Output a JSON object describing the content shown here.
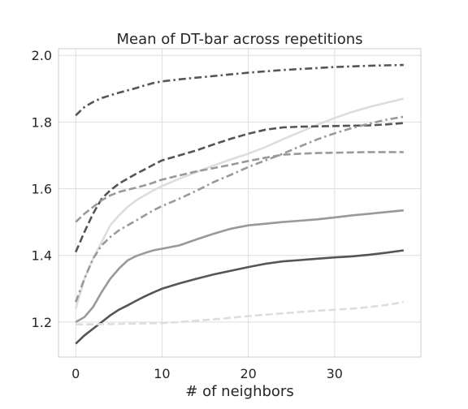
{
  "chart_data": {
    "type": "line",
    "title": "Mean of DT-bar across repetitions",
    "xlabel": "# of neighbors",
    "ylabel": "",
    "xlim": [
      -2,
      40
    ],
    "ylim": [
      1.095,
      2.02
    ],
    "xticks": [
      0,
      10,
      20,
      30
    ],
    "yticks": [
      1.2,
      1.4,
      1.6,
      1.8,
      2.0
    ],
    "ytick_labels": [
      "1.2",
      "1.4",
      "1.6",
      "1.8",
      "2.0"
    ],
    "grid": true,
    "series": [
      {
        "color": "#555555",
        "dash": "dashdot",
        "x": [
          0,
          1,
          2,
          3,
          4,
          5,
          6,
          7,
          8,
          9,
          10,
          12,
          14,
          16,
          18,
          20,
          22,
          24,
          26,
          28,
          30,
          32,
          34,
          36,
          38
        ],
        "y": [
          1.82,
          1.845,
          1.86,
          1.872,
          1.88,
          1.888,
          1.895,
          1.902,
          1.91,
          1.917,
          1.922,
          1.928,
          1.933,
          1.938,
          1.943,
          1.948,
          1.952,
          1.956,
          1.959,
          1.962,
          1.965,
          1.967,
          1.969,
          1.97,
          1.971
        ]
      },
      {
        "color": "#dddddd",
        "dash": "solid",
        "x": [
          0,
          1,
          2,
          3,
          4,
          5,
          6,
          7,
          8,
          9,
          10,
          12,
          14,
          16,
          18,
          20,
          22,
          24,
          26,
          28,
          30,
          32,
          34,
          36,
          38
        ],
        "y": [
          1.24,
          1.33,
          1.39,
          1.44,
          1.49,
          1.52,
          1.545,
          1.565,
          1.58,
          1.595,
          1.608,
          1.63,
          1.65,
          1.67,
          1.688,
          1.705,
          1.725,
          1.748,
          1.77,
          1.792,
          1.812,
          1.83,
          1.845,
          1.858,
          1.87
        ]
      },
      {
        "color": "#555555",
        "dash": "dashed",
        "x": [
          0,
          1,
          2,
          3,
          4,
          5,
          6,
          7,
          8,
          9,
          10,
          12,
          14,
          16,
          18,
          20,
          22,
          24,
          26,
          28,
          30,
          32,
          34,
          36,
          38
        ],
        "y": [
          1.41,
          1.47,
          1.525,
          1.57,
          1.595,
          1.615,
          1.63,
          1.645,
          1.658,
          1.672,
          1.685,
          1.7,
          1.715,
          1.733,
          1.75,
          1.765,
          1.777,
          1.784,
          1.786,
          1.787,
          1.788,
          1.789,
          1.79,
          1.793,
          1.797
        ]
      },
      {
        "color": "#999999",
        "dash": "dashdot",
        "x": [
          0,
          1,
          2,
          3,
          4,
          5,
          6,
          7,
          8,
          9,
          10,
          12,
          14,
          16,
          18,
          20,
          22,
          24,
          26,
          28,
          30,
          32,
          34,
          36,
          38
        ],
        "y": [
          1.26,
          1.33,
          1.39,
          1.43,
          1.455,
          1.475,
          1.49,
          1.505,
          1.52,
          1.535,
          1.548,
          1.57,
          1.594,
          1.62,
          1.642,
          1.665,
          1.685,
          1.705,
          1.727,
          1.748,
          1.766,
          1.782,
          1.795,
          1.807,
          1.816
        ]
      },
      {
        "color": "#999999",
        "dash": "dashed",
        "x": [
          0,
          1,
          2,
          3,
          4,
          5,
          6,
          7,
          8,
          9,
          10,
          12,
          14,
          16,
          18,
          20,
          22,
          24,
          26,
          28,
          30,
          32,
          34,
          36,
          38
        ],
        "y": [
          1.5,
          1.525,
          1.545,
          1.565,
          1.58,
          1.59,
          1.597,
          1.603,
          1.61,
          1.618,
          1.627,
          1.64,
          1.652,
          1.662,
          1.672,
          1.683,
          1.693,
          1.702,
          1.705,
          1.707,
          1.708,
          1.709,
          1.71,
          1.71,
          1.71
        ]
      },
      {
        "color": "#999999",
        "dash": "solid",
        "x": [
          0,
          1,
          2,
          3,
          4,
          5,
          6,
          7,
          8,
          9,
          10,
          12,
          14,
          16,
          18,
          20,
          22,
          24,
          26,
          28,
          30,
          32,
          34,
          36,
          38
        ],
        "y": [
          1.2,
          1.215,
          1.245,
          1.29,
          1.33,
          1.36,
          1.385,
          1.398,
          1.407,
          1.415,
          1.42,
          1.43,
          1.448,
          1.465,
          1.48,
          1.49,
          1.495,
          1.5,
          1.504,
          1.508,
          1.514,
          1.52,
          1.525,
          1.53,
          1.535
        ]
      },
      {
        "color": "#555555",
        "dash": "solid",
        "x": [
          0,
          1,
          2,
          3,
          4,
          5,
          6,
          7,
          8,
          9,
          10,
          12,
          14,
          16,
          18,
          20,
          22,
          24,
          26,
          28,
          30,
          32,
          34,
          36,
          38
        ],
        "y": [
          1.135,
          1.16,
          1.18,
          1.2,
          1.22,
          1.237,
          1.25,
          1.264,
          1.277,
          1.289,
          1.3,
          1.316,
          1.33,
          1.343,
          1.354,
          1.365,
          1.375,
          1.382,
          1.386,
          1.39,
          1.394,
          1.397,
          1.402,
          1.408,
          1.415
        ]
      },
      {
        "color": "#dddddd",
        "dash": "dashed",
        "x": [
          0,
          2,
          4,
          6,
          8,
          10,
          12,
          14,
          16,
          18,
          20,
          22,
          24,
          26,
          28,
          30,
          32,
          34,
          36,
          38
        ],
        "y": [
          1.193,
          1.193,
          1.194,
          1.195,
          1.196,
          1.197,
          1.2,
          1.204,
          1.208,
          1.213,
          1.218,
          1.222,
          1.226,
          1.23,
          1.234,
          1.237,
          1.24,
          1.245,
          1.251,
          1.26
        ]
      }
    ]
  }
}
